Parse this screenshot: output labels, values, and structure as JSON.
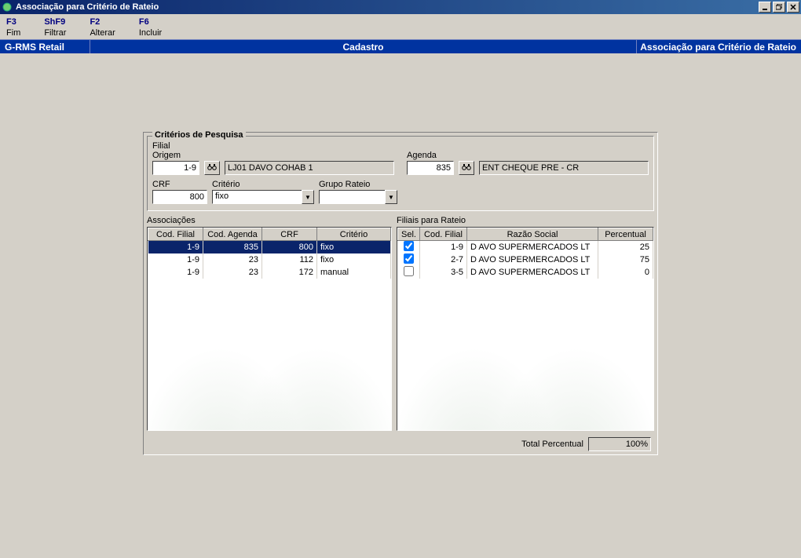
{
  "window": {
    "title": "Associação para Critério de Rateio"
  },
  "toolbar": {
    "items": [
      {
        "key": "F3",
        "label": "Fim"
      },
      {
        "key": "ShF9",
        "label": "Filtrar"
      },
      {
        "key": "F2",
        "label": "Alterar"
      },
      {
        "key": "F6",
        "label": "Incluir"
      }
    ]
  },
  "bluebar": {
    "left": "G-RMS Retail",
    "center": "Cadastro",
    "right": "Associação para Critério de Rateio"
  },
  "search": {
    "legend": "Critérios de Pesquisa",
    "filial_label": "Filial Origem",
    "filial_value": "1-9",
    "filial_desc": "LJ01 DAVO COHAB 1",
    "agenda_label": "Agenda",
    "agenda_value": "835",
    "agenda_desc": "ENT CHEQUE PRE - CR",
    "crf_label": "CRF",
    "crf_value": "800",
    "criterio_label": "Critério",
    "criterio_value": "fixo",
    "grupo_label": "Grupo Rateio",
    "grupo_value": ""
  },
  "assoc": {
    "label": "Associações",
    "columns": [
      "Cod. Filial",
      "Cod. Agenda",
      "CRF",
      "Critério"
    ],
    "rows": [
      {
        "filial": "1-9",
        "agenda": "835",
        "crf": "800",
        "criterio": "fixo",
        "selected": true
      },
      {
        "filial": "1-9",
        "agenda": "23",
        "crf": "112",
        "criterio": "fixo",
        "selected": false
      },
      {
        "filial": "1-9",
        "agenda": "23",
        "crf": "172",
        "criterio": "manual",
        "selected": false
      }
    ]
  },
  "filiais": {
    "label": "Filiais para Rateio",
    "columns": [
      "Sel.",
      "Cod. Filial",
      "Razão Social",
      "Percentual"
    ],
    "rows": [
      {
        "sel": true,
        "filial": "1-9",
        "razao": "D AVO SUPERMERCADOS LT",
        "perc": "25"
      },
      {
        "sel": true,
        "filial": "2-7",
        "razao": "D AVO SUPERMERCADOS LT",
        "perc": "75"
      },
      {
        "sel": false,
        "filial": "3-5",
        "razao": "D AVO SUPERMERCADOS LT",
        "perc": "0"
      }
    ]
  },
  "total": {
    "label": "Total Percentual",
    "value": "100%"
  },
  "colors": {
    "titlebar_start": "#0a246a",
    "titlebar_end": "#3a6ea5",
    "bluebar": "#0033a0",
    "background": "#d4d0c8",
    "selection": "#0a246a"
  }
}
